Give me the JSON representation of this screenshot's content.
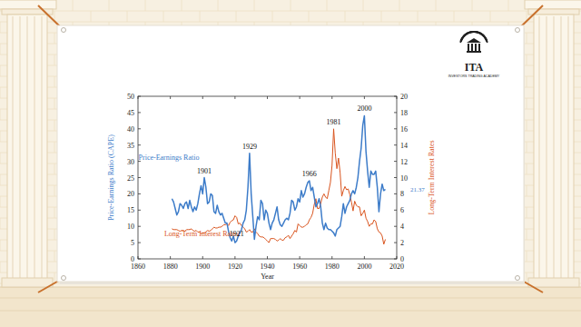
{
  "chart_data": {
    "type": "line",
    "x_label": "Year",
    "y_label": "Price-Earnings  Ratio (CAPE)",
    "y2_label": "Long-Term Interest Rates",
    "xlim": [
      1860,
      2020
    ],
    "xticks": [
      1860,
      1880,
      1900,
      1920,
      1940,
      1960,
      1980,
      2000,
      2020
    ],
    "ylim": [
      0,
      50
    ],
    "yticks": [
      0,
      5,
      10,
      15,
      20,
      25,
      30,
      35,
      40,
      45,
      50
    ],
    "y2lim": [
      0,
      20
    ],
    "y2ticks": [
      0,
      2,
      4,
      6,
      8,
      10,
      12,
      14,
      16,
      18,
      20
    ],
    "grid": false,
    "x": [
      1881,
      1882,
      1883,
      1884,
      1885,
      1886,
      1887,
      1888,
      1889,
      1890,
      1891,
      1892,
      1893,
      1894,
      1895,
      1896,
      1897,
      1898,
      1899,
      1900,
      1901,
      1902,
      1903,
      1904,
      1905,
      1906,
      1907,
      1908,
      1909,
      1910,
      1911,
      1912,
      1913,
      1914,
      1915,
      1916,
      1917,
      1918,
      1919,
      1920,
      1921,
      1922,
      1923,
      1924,
      1925,
      1926,
      1927,
      1928,
      1929,
      1930,
      1931,
      1932,
      1933,
      1934,
      1935,
      1936,
      1937,
      1938,
      1939,
      1940,
      1941,
      1942,
      1943,
      1944,
      1945,
      1946,
      1947,
      1948,
      1949,
      1950,
      1951,
      1952,
      1953,
      1954,
      1955,
      1956,
      1957,
      1958,
      1959,
      1960,
      1961,
      1962,
      1963,
      1964,
      1965,
      1966,
      1967,
      1968,
      1969,
      1970,
      1971,
      1972,
      1973,
      1974,
      1975,
      1976,
      1977,
      1978,
      1979,
      1980,
      1981,
      1982,
      1983,
      1984,
      1985,
      1986,
      1987,
      1988,
      1989,
      1990,
      1991,
      1992,
      1993,
      1994,
      1995,
      1996,
      1997,
      1998,
      1999,
      2000,
      2001,
      2002,
      2003,
      2004,
      2005,
      2006,
      2007,
      2008,
      2009,
      2010,
      2011,
      2012,
      2013
    ],
    "series": [
      {
        "name": "Price-Earnings Ratio",
        "color": "#3d7cc9",
        "axis": "y",
        "values": [
          18.5,
          17.5,
          15.5,
          13.5,
          14.5,
          17.0,
          16.5,
          15.5,
          17.0,
          17.5,
          15.5,
          18.0,
          16.0,
          14.5,
          16.0,
          15.0,
          17.0,
          20.0,
          22.5,
          20.0,
          25.0,
          22.0,
          17.0,
          17.5,
          20.0,
          19.5,
          14.5,
          14.0,
          16.5,
          14.5,
          13.5,
          14.0,
          12.5,
          11.0,
          11.0,
          8.5,
          6.5,
          5.5,
          7.0,
          5.0,
          5.5,
          7.0,
          8.0,
          9.0,
          11.0,
          12.0,
          15.0,
          22.0,
          32.5,
          20.0,
          13.0,
          6.0,
          10.0,
          13.0,
          12.0,
          18.0,
          17.0,
          12.0,
          15.0,
          14.0,
          11.0,
          9.0,
          11.0,
          12.0,
          14.0,
          16.0,
          12.0,
          10.5,
          10.0,
          11.0,
          12.0,
          12.5,
          12.0,
          14.0,
          18.0,
          17.5,
          15.0,
          16.0,
          18.5,
          17.5,
          21.0,
          19.0,
          20.0,
          22.0,
          23.5,
          24.0,
          21.0,
          22.0,
          19.0,
          16.0,
          17.0,
          18.5,
          16.0,
          11.0,
          9.0,
          11.0,
          9.5,
          9.0,
          9.0,
          8.5,
          8.0,
          7.0,
          9.0,
          9.5,
          10.0,
          13.0,
          17.0,
          14.0,
          16.0,
          17.0,
          18.0,
          20.0,
          21.0,
          20.0,
          22.0,
          25.0,
          30.0,
          34.0,
          41.0,
          44.0,
          33.0,
          27.0,
          22.0,
          27.0,
          26.0,
          26.0,
          27.0,
          22.0,
          14.5,
          20.0,
          23.0,
          21.0,
          21.37
        ]
      },
      {
        "name": "Long-Term Interest Rates",
        "color": "#d9541e",
        "axis": "y2",
        "values": [
          3.7,
          3.6,
          3.6,
          3.6,
          3.5,
          3.4,
          3.5,
          3.5,
          3.4,
          3.6,
          3.6,
          3.6,
          3.7,
          3.5,
          3.4,
          3.5,
          3.3,
          3.3,
          3.1,
          3.2,
          3.2,
          3.3,
          3.5,
          3.4,
          3.5,
          3.7,
          3.9,
          3.8,
          3.8,
          3.9,
          3.9,
          4.0,
          4.2,
          4.2,
          4.3,
          4.1,
          4.5,
          4.7,
          4.8,
          5.3,
          5.1,
          4.3,
          4.4,
          4.1,
          3.9,
          3.7,
          3.3,
          3.4,
          3.6,
          3.3,
          3.3,
          3.7,
          3.3,
          3.1,
          2.8,
          2.7,
          2.7,
          2.6,
          2.4,
          2.2,
          2.0,
          2.5,
          2.5,
          2.5,
          2.4,
          2.2,
          2.3,
          2.5,
          2.3,
          2.3,
          2.6,
          2.7,
          2.9,
          2.5,
          2.8,
          3.1,
          3.5,
          3.3,
          4.3,
          4.1,
          3.9,
          3.9,
          4.0,
          4.2,
          4.3,
          4.8,
          5.1,
          5.6,
          6.7,
          7.4,
          6.2,
          6.2,
          6.8,
          7.6,
          8.0,
          7.6,
          7.4,
          8.4,
          9.4,
          11.5,
          16.0,
          13.0,
          11.1,
          12.4,
          10.6,
          7.7,
          8.4,
          8.9,
          8.5,
          8.6,
          7.9,
          7.0,
          5.9,
          7.1,
          6.6,
          6.4,
          6.4,
          5.3,
          5.6,
          6.0,
          5.0,
          4.6,
          4.0,
          4.3,
          4.3,
          4.8,
          4.6,
          3.7,
          3.3,
          3.2,
          2.8,
          1.8,
          2.4
        ]
      }
    ],
    "annotations": [
      {
        "text": "1901",
        "x": 1901,
        "y": 25.0,
        "axis": "y"
      },
      {
        "text": "1921",
        "x": 1921,
        "y": 5.5,
        "axis": "y"
      },
      {
        "text": "1929",
        "x": 1929,
        "y": 32.5,
        "axis": "y"
      },
      {
        "text": "1966",
        "x": 1966,
        "y": 24.0,
        "axis": "y"
      },
      {
        "text": "1981",
        "x": 1981,
        "y": 16.0,
        "axis": "y2"
      },
      {
        "text": "2000",
        "x": 2000,
        "y": 44.0,
        "axis": "y"
      },
      {
        "text": "21.37",
        "x": 2013,
        "y": 21.37,
        "axis": "y"
      }
    ]
  },
  "logo": {
    "title": "ITA",
    "subtitle": "INVESTORS TRADING ACADEMY"
  }
}
